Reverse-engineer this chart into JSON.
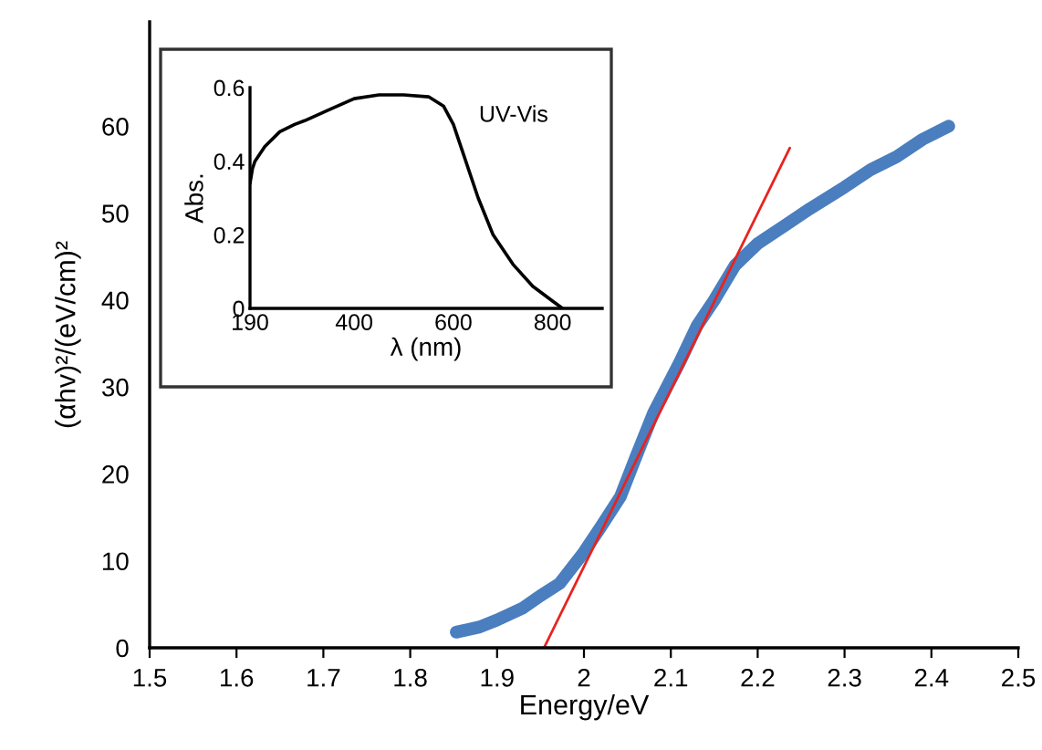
{
  "chart_data": [
    {
      "type": "line",
      "xlabel": "Energy/eV",
      "ylabel": "(αhv)²/(eV/cm)²",
      "xlim": [
        1.5,
        2.5
      ],
      "xticks": [
        1.5,
        1.6,
        1.7,
        1.8,
        1.9,
        {
          "value": 2.0,
          "label": "2"
        },
        2.1,
        2.2,
        2.3,
        2.4,
        2.5
      ],
      "ylim": [
        0,
        72
      ],
      "yticks": [
        0,
        10,
        20,
        30,
        40,
        50,
        60
      ],
      "grid": false,
      "legend": false,
      "series": [
        {
          "color": "#4a7ebf",
          "x": [
            1.853,
            1.88,
            1.9,
            1.93,
            1.95,
            1.972,
            2.0,
            2.02,
            2.042,
            2.06,
            2.08,
            2.11,
            2.13,
            2.15,
            2.174,
            2.2,
            2.23,
            2.26,
            2.3,
            2.33,
            2.36,
            2.39,
            2.42
          ],
          "values": [
            1.8,
            2.4,
            3.2,
            4.6,
            6.0,
            7.4,
            11.0,
            14.0,
            17.4,
            22.0,
            27.0,
            32.8,
            37.0,
            40.0,
            44.0,
            46.5,
            48.5,
            50.5,
            53.0,
            55.0,
            56.5,
            58.5,
            60.0
          ]
        },
        {
          "color": "#e8231e",
          "x": [
            1.954,
            2.237
          ],
          "values": [
            0,
            57.5
          ]
        }
      ]
    },
    {
      "type": "line",
      "xlabel": "λ (nm)",
      "ylabel": "Abs.",
      "xlim": [
        190,
        900
      ],
      "xticks": [
        190,
        400,
        600,
        800
      ],
      "ylim": [
        0,
        0.6
      ],
      "yticks": [
        0,
        0.2,
        0.4,
        0.6
      ],
      "grid": false,
      "legend": false,
      "annotations": [
        "UV-Vis"
      ],
      "series": [
        {
          "color": "#000000",
          "x": [
            190,
            195,
            200,
            220,
            250,
            280,
            300,
            350,
            400,
            450,
            500,
            550,
            580,
            600,
            620,
            650,
            680,
            720,
            760,
            800,
            820
          ],
          "values": [
            0.34,
            0.38,
            0.4,
            0.44,
            0.48,
            0.5,
            0.51,
            0.54,
            0.57,
            0.58,
            0.58,
            0.575,
            0.55,
            0.5,
            0.42,
            0.3,
            0.2,
            0.12,
            0.06,
            0.02,
            0
          ]
        }
      ]
    }
  ]
}
